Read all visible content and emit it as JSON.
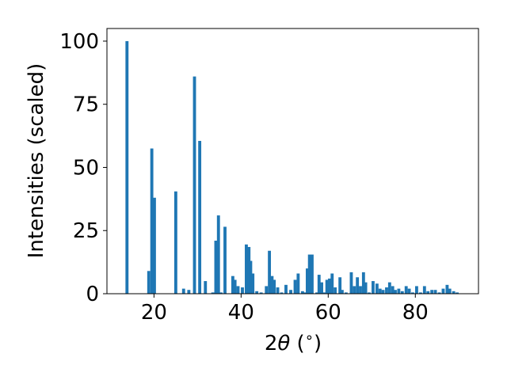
{
  "chart_data": {
    "type": "bar",
    "xlabel": {
      "prefix": "2",
      "symbol": "θ",
      "unit_open": " (",
      "unit_symbol": "∘",
      "unit_close": ")"
    },
    "ylabel": "Intensities (scaled)",
    "xlim": [
      9.2,
      94.5
    ],
    "ylim": [
      0,
      105
    ],
    "xticks": [
      20,
      40,
      60,
      80
    ],
    "yticks": [
      0,
      25,
      50,
      75,
      100
    ],
    "bar_width": 0.7,
    "bar_color": "#1f77b4",
    "grid": false,
    "legend": "none",
    "x": [
      13.8,
      18.8,
      19.5,
      20.1,
      25.0,
      26.8,
      28.0,
      29.3,
      30.5,
      31.8,
      33.5,
      34.2,
      34.8,
      35.4,
      36.3,
      38.1,
      38.6,
      39.3,
      40.3,
      41.2,
      41.8,
      42.2,
      42.7,
      43.6,
      44.6,
      45.8,
      46.5,
      47.1,
      47.6,
      48.4,
      49.3,
      50.3,
      51.4,
      52.4,
      53.1,
      54.1,
      54.6,
      55.2,
      55.7,
      56.3,
      57.4,
      57.9,
      58.5,
      59.1,
      59.7,
      60.3,
      60.9,
      61.6,
      62.7,
      63.2,
      64.1,
      65.3,
      66.0,
      66.7,
      67.4,
      68.1,
      68.6,
      69.4,
      70.3,
      71.2,
      71.9,
      72.6,
      73.4,
      74.1,
      74.8,
      75.4,
      76.2,
      77.0,
      77.9,
      78.6,
      79.4,
      80.3,
      81.2,
      82.1,
      82.9,
      83.8,
      84.6,
      85.5,
      86.4,
      87.3,
      87.9,
      88.8,
      89.6
    ],
    "values": [
      100,
      9,
      57.5,
      38,
      40.5,
      2,
      1.5,
      86,
      60.5,
      5,
      0.5,
      21,
      31,
      0.5,
      26.5,
      7,
      5.5,
      3,
      2.5,
      19.5,
      18.5,
      13,
      8,
      1,
      0.5,
      3,
      17,
      7,
      5.5,
      2.5,
      0.5,
      3.5,
      1.5,
      5.5,
      8,
      1,
      0.5,
      10,
      15.5,
      15.5,
      0.5,
      7.5,
      4.5,
      0.5,
      5.5,
      6,
      8,
      2.5,
      6.5,
      1.5,
      0.5,
      8.5,
      3,
      6.5,
      3,
      8.5,
      4.5,
      0.5,
      5,
      4,
      2,
      1.5,
      2.5,
      4.5,
      3,
      1.5,
      2,
      1,
      3,
      2,
      0.5,
      3,
      0.5,
      3,
      1,
      1.5,
      1.5,
      0.5,
      2,
      3.5,
      2,
      1,
      0.5
    ]
  }
}
